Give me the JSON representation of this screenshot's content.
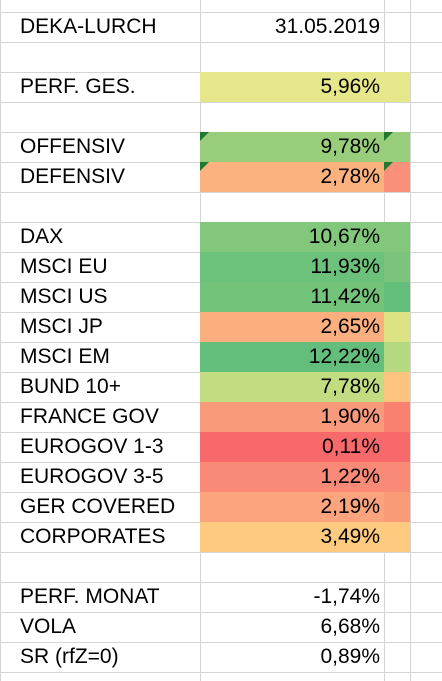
{
  "header": {
    "title": "DEKA-LURCH",
    "date": "31.05.2019"
  },
  "summary": {
    "label": "PERF. GES.",
    "value": "5,96%",
    "color": "#e6e68a"
  },
  "strategies": [
    {
      "label": "OFFENSIV",
      "value": "9,78%",
      "color": "#97cd7b",
      "ext_color": "#97cd7b",
      "note_marker": true
    },
    {
      "label": "DEFENSIV",
      "value": "2,78%",
      "color": "#fbb27f",
      "ext_color": "#f9917a",
      "note_marker": true
    }
  ],
  "assets": [
    {
      "label": "DAX",
      "value": "10,67%",
      "color": "#82c77c",
      "ext_color": "#82c77c"
    },
    {
      "label": "MSCI EU",
      "value": "11,93%",
      "color": "#6cc17b",
      "ext_color": "#7cc47c"
    },
    {
      "label": "MSCI US",
      "value": "11,42%",
      "color": "#74c37b",
      "ext_color": "#63be7b"
    },
    {
      "label": "MSCI JP",
      "value": "2,65%",
      "color": "#fbae7e",
      "ext_color": "#dce382"
    },
    {
      "label": "MSCI EM",
      "value": "12,22%",
      "color": "#63be7b",
      "ext_color": "#b5d980"
    },
    {
      "label": "BUND 10+",
      "value": "7,78%",
      "color": "#c1dc81",
      "ext_color": "#fdc47f"
    },
    {
      "label": "FRANCE GOV",
      "value": "1,90%",
      "color": "#fa9a7c",
      "ext_color": "#f8816f"
    },
    {
      "label": "EUROGOV 1-3",
      "value": "0,11%",
      "color": "#f8696b",
      "ext_color": "#f8696b"
    },
    {
      "label": "EUROGOV 3-5",
      "value": "1,22%",
      "color": "#f98a78",
      "ext_color": "#f98a78"
    },
    {
      "label": "GER COVERED",
      "value": "2,19%",
      "color": "#fba47d",
      "ext_color": "#fa9b77"
    },
    {
      "label": "CORPORATES",
      "value": "3,49%",
      "color": "#fdca7f",
      "ext_color": "#fdca7f"
    }
  ],
  "stats": [
    {
      "label": "PERF. MONAT",
      "value": "-1,74%"
    },
    {
      "label": "VOLA",
      "value": "6,68%"
    },
    {
      "label": "SR (rfZ=0)",
      "value": "0,89%"
    }
  ]
}
